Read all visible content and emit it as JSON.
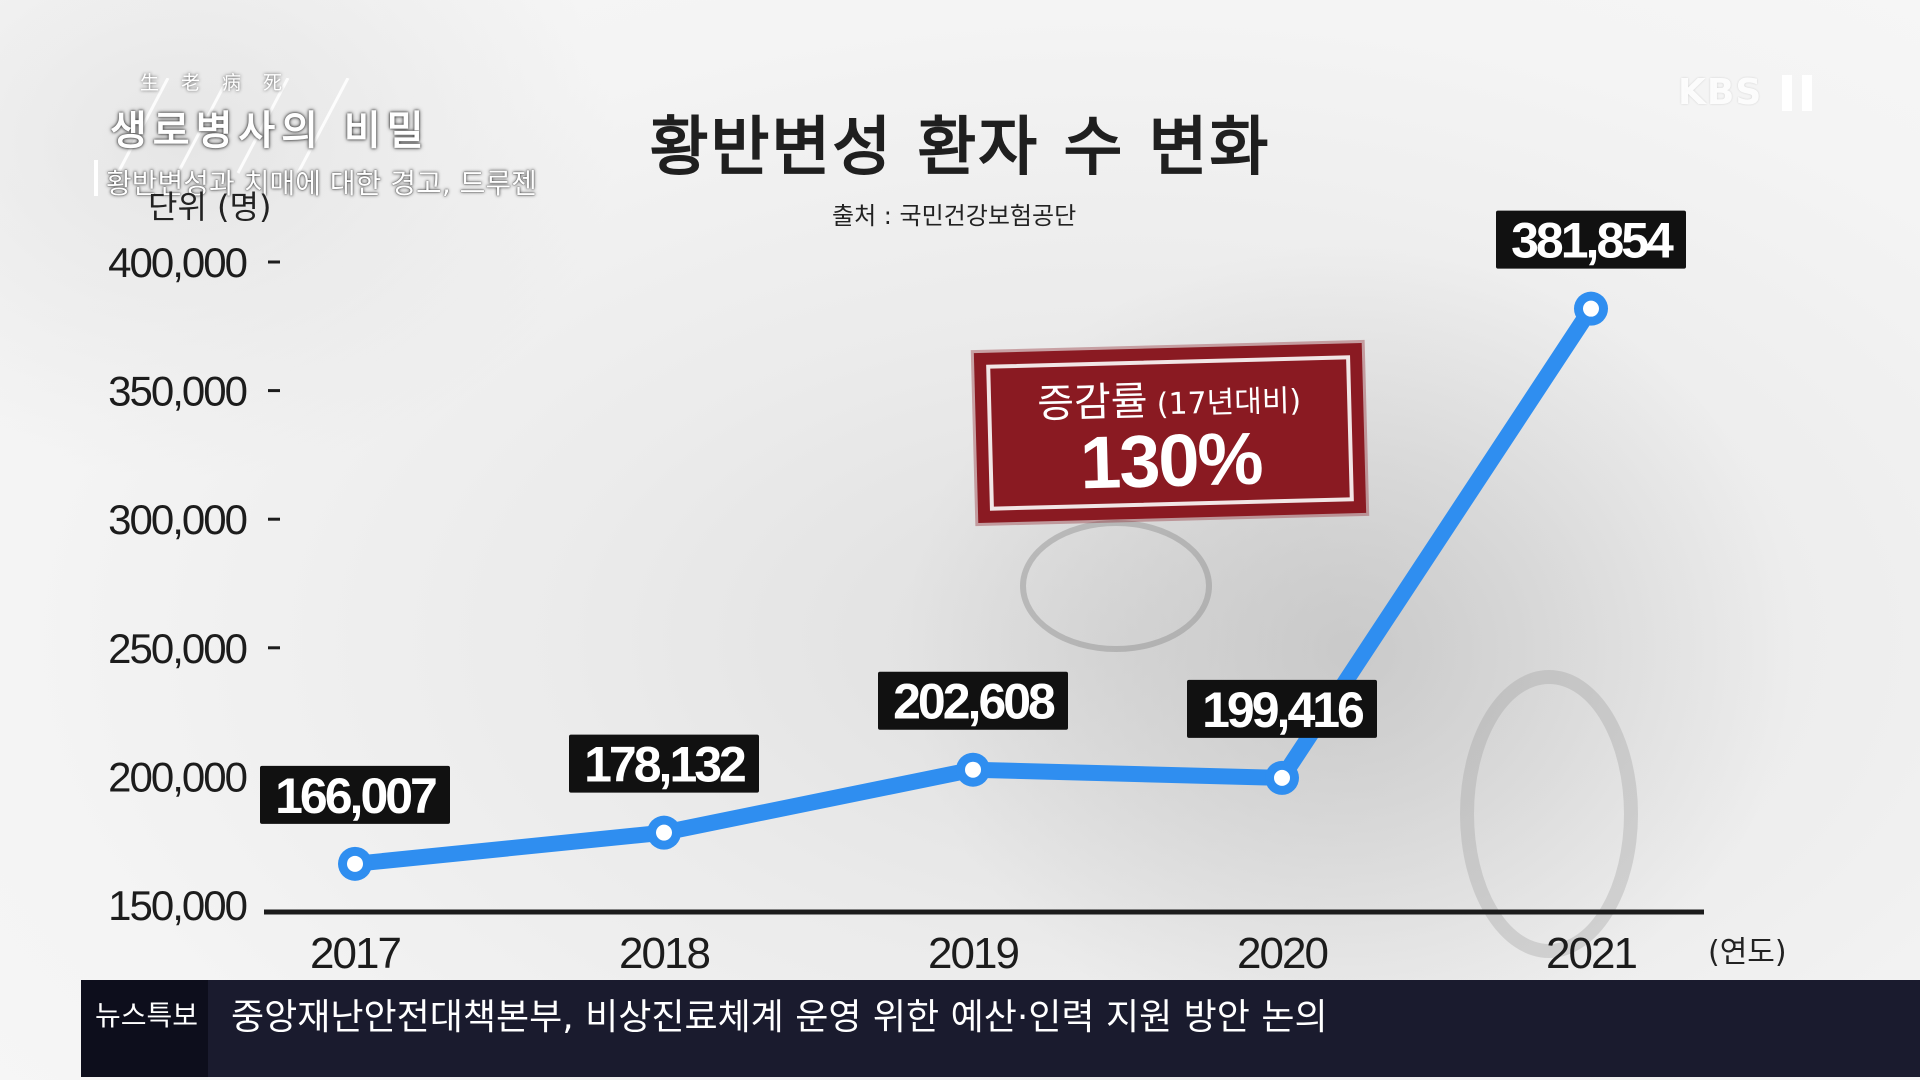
{
  "broadcast": {
    "program_hanja": "生老病死",
    "program_title": "생로병사의 비밀",
    "program_subtitle": "황반변성과 치매에 대한 경고, 드루젠",
    "channel_logo": "KBS",
    "channel_number": "1"
  },
  "ticker": {
    "tag": "뉴스특보",
    "headline": "중앙재난안전대책본부, 비상진료체계 운영 위한 예산·인력 지원 방안 논의"
  },
  "callout": {
    "label": "증감률",
    "sublabel": "(17년대비)",
    "value": "130%",
    "color": "#8a1a22"
  },
  "chart_data": {
    "type": "line",
    "title": "황반변성 환자 수 변화",
    "source": "출처 : 국민건강보험공단",
    "ylabel": "단위 (명)",
    "xlabel": "(연도)",
    "categories": [
      "2017",
      "2018",
      "2019",
      "2020",
      "2021"
    ],
    "values": [
      166007,
      178132,
      202608,
      199416,
      381854
    ],
    "data_labels": [
      "166,007",
      "178,132",
      "202,608",
      "199,416",
      "381,854"
    ],
    "ylim": [
      150000,
      400000
    ],
    "yticks": [
      150000,
      200000,
      250000,
      300000,
      350000,
      400000
    ],
    "ytick_labels": [
      "150,000",
      "200,000",
      "250,000",
      "300,000",
      "350,000",
      "400,000"
    ],
    "grid": false,
    "line_color": "#2f8ef0"
  }
}
